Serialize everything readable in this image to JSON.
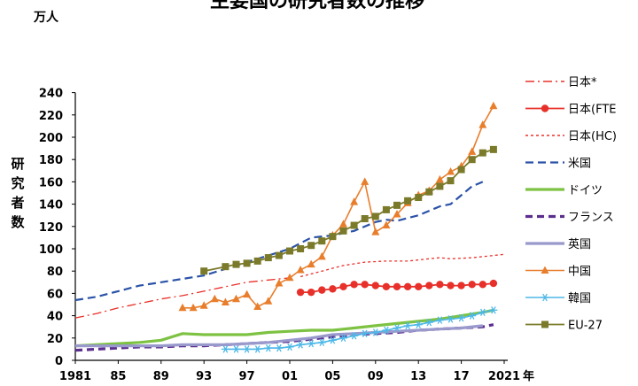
{
  "chart_data": {
    "type": "line",
    "title": "主要国の研究者数の推移",
    "y_unit": "万人",
    "ylabel": "研究者数",
    "x_unit": "年",
    "ylim": [
      0,
      240
    ],
    "yticks": [
      0,
      20,
      40,
      60,
      80,
      100,
      120,
      140,
      160,
      180,
      200,
      220,
      240
    ],
    "xlim": [
      1981,
      2021
    ],
    "xtick_labels": [
      "1981",
      "85",
      "89",
      "93",
      "97",
      "01",
      "05",
      "09",
      "13",
      "17",
      "2021"
    ],
    "grid": false,
    "legend_position": "right",
    "series": [
      {
        "name": "日本*",
        "color": "#e8302a",
        "dash": "10,4,2,4",
        "marker": "none",
        "width": 1.3,
        "x": [
          1981,
          1983,
          1985,
          1987,
          1989,
          1991,
          1993,
          1995,
          1997,
          1999,
          2001
        ],
        "y": [
          38,
          42,
          47,
          51,
          55,
          58,
          62,
          66,
          70,
          72,
          74
        ]
      },
      {
        "name": "日本(FTE",
        "color": "#e8302a",
        "dash": "",
        "marker": "circle",
        "width": 1.8,
        "x": [
          2002,
          2003,
          2004,
          2005,
          2006,
          2007,
          2008,
          2009,
          2010,
          2011,
          2012,
          2013,
          2014,
          2015,
          2016,
          2017,
          2018,
          2019,
          2020
        ],
        "y": [
          61,
          61,
          63,
          64,
          66,
          68,
          68,
          67,
          66,
          66,
          66,
          66,
          67,
          68,
          67,
          67,
          68,
          68,
          69
        ]
      },
      {
        "name": "日本(HC)",
        "color": "#e8302a",
        "dash": "3,3",
        "marker": "none",
        "width": 1.3,
        "x": [
          2002,
          2004,
          2006,
          2008,
          2010,
          2012,
          2013,
          2014,
          2015,
          2016,
          2018,
          2020,
          2021
        ],
        "y": [
          75,
          80,
          85,
          88,
          89,
          89,
          90,
          91,
          92,
          91,
          92,
          94,
          95
        ]
      },
      {
        "name": "米国",
        "color": "#2a52a8",
        "dash": "9,5",
        "marker": "none",
        "width": 2.2,
        "x": [
          1981,
          1983,
          1985,
          1987,
          1989,
          1991,
          1993,
          1995,
          1997,
          1999,
          2001,
          2003,
          2005,
          2007,
          2009,
          2010,
          2011,
          2013,
          2015,
          2016,
          2017,
          2018,
          2019
        ],
        "y": [
          54,
          57,
          62,
          67,
          70,
          73,
          76,
          82,
          88,
          94,
          100,
          110,
          112,
          116,
          124,
          126,
          125,
          130,
          138,
          140,
          148,
          156,
          160
        ]
      },
      {
        "name": "ドイツ",
        "color": "#7dc242",
        "dash": "",
        "marker": "none",
        "width": 3.2,
        "x": [
          1981,
          1983,
          1985,
          1987,
          1989,
          1991,
          1993,
          1995,
          1997,
          1999,
          2001,
          2003,
          2005,
          2007,
          2009,
          2011,
          2013,
          2015,
          2017,
          2019,
          2020
        ],
        "y": [
          13,
          14,
          15,
          16,
          18,
          24,
          23,
          23,
          23,
          25,
          26,
          27,
          27,
          29,
          31,
          33,
          35,
          37,
          40,
          43,
          45
        ]
      },
      {
        "name": "フランス",
        "color": "#5b2d8e",
        "dash": "8,5",
        "marker": "none",
        "width": 3.2,
        "x": [
          1981,
          1983,
          1985,
          1987,
          1989,
          1991,
          1993,
          1995,
          1997,
          1999,
          2001,
          2003,
          2005,
          2007,
          2009,
          2011,
          2013,
          2015,
          2017,
          2019,
          2020
        ],
        "y": [
          9,
          10,
          11,
          12,
          12,
          13,
          13,
          14,
          15,
          16,
          17,
          19,
          21,
          23,
          24,
          25,
          27,
          28,
          29,
          30,
          32
        ]
      },
      {
        "name": "英国",
        "color": "#9999cc",
        "dash": "",
        "marker": "none",
        "width": 3.2,
        "x": [
          1981,
          1983,
          1985,
          1987,
          1989,
          1991,
          1993,
          1995,
          1997,
          1999,
          2001,
          2003,
          2005,
          2007,
          2009,
          2011,
          2013,
          2015,
          2017,
          2019
        ],
        "y": [
          13,
          13,
          13,
          13,
          13,
          14,
          14,
          14,
          15,
          16,
          18,
          20,
          23,
          24,
          25,
          26,
          27,
          28,
          29,
          31
        ]
      },
      {
        "name": "中国",
        "color": "#e87e2c",
        "dash": "",
        "marker": "triangle",
        "width": 1.6,
        "x": [
          1991,
          1992,
          1993,
          1994,
          1995,
          1996,
          1997,
          1998,
          1999,
          2000,
          2001,
          2002,
          2003,
          2004,
          2005,
          2006,
          2007,
          2008,
          2009,
          2010,
          2011,
          2012,
          2013,
          2014,
          2015,
          2016,
          2017,
          2018,
          2019,
          2020
        ],
        "y": [
          47,
          47,
          49,
          55,
          52,
          55,
          59,
          48,
          53,
          69,
          74,
          81,
          86,
          93,
          112,
          122,
          142,
          160,
          115,
          121,
          131,
          141,
          148,
          152,
          162,
          169,
          174,
          187,
          211,
          228
        ]
      },
      {
        "name": "韓国",
        "color": "#4db8e8",
        "dash": "",
        "marker": "star",
        "width": 1.6,
        "x": [
          1995,
          1996,
          1997,
          1998,
          1999,
          2000,
          2001,
          2002,
          2003,
          2004,
          2005,
          2006,
          2007,
          2008,
          2009,
          2010,
          2011,
          2012,
          2013,
          2014,
          2015,
          2016,
          2017,
          2018,
          2019,
          2020
        ],
        "y": [
          10,
          10,
          10,
          10,
          11,
          11,
          12,
          14,
          15,
          16,
          18,
          20,
          22,
          24,
          25,
          27,
          29,
          31,
          32,
          34,
          36,
          37,
          38,
          40,
          43,
          45
        ]
      },
      {
        "name": "EU-27",
        "color": "#7a7a2a",
        "dash": "",
        "marker": "square",
        "width": 1.8,
        "x": [
          1993,
          1995,
          1996,
          1997,
          1998,
          1999,
          2000,
          2001,
          2002,
          2003,
          2004,
          2005,
          2006,
          2007,
          2008,
          2009,
          2010,
          2011,
          2012,
          2013,
          2014,
          2015,
          2016,
          2017,
          2018,
          2019,
          2020
        ],
        "y": [
          80,
          84,
          86,
          87,
          89,
          92,
          94,
          98,
          100,
          103,
          107,
          111,
          116,
          121,
          127,
          129,
          135,
          139,
          143,
          146,
          151,
          156,
          161,
          171,
          180,
          186,
          189
        ]
      }
    ]
  }
}
